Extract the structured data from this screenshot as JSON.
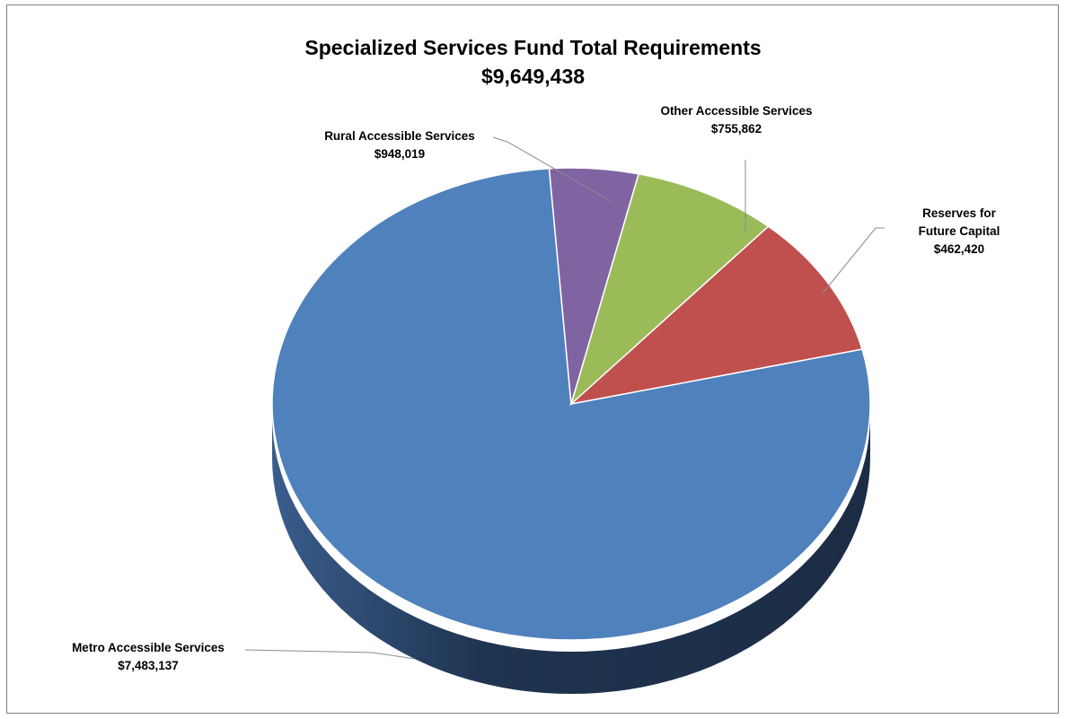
{
  "chart_data": {
    "type": "pie",
    "title": "Specialized Services Fund Total Requirements",
    "subtitle": "$9,649,438",
    "slices": [
      {
        "label_lines": [
          "Metro Accessible Services"
        ],
        "value_label": "$7,483,137",
        "value": 7483137,
        "color": "#4F81BD"
      },
      {
        "label_lines": [
          "Rural Accessible Services"
        ],
        "value_label": "$948,019",
        "value": 948019,
        "color": "#C0504D"
      },
      {
        "label_lines": [
          "Other Accessible Services"
        ],
        "value_label": "$755,862",
        "value": 755862,
        "color": "#9BBB59"
      },
      {
        "label_lines": [
          "Reserves for",
          "Future Capital"
        ],
        "value_label": "$462,420",
        "value": 462420,
        "color": "#8064A2"
      }
    ]
  }
}
